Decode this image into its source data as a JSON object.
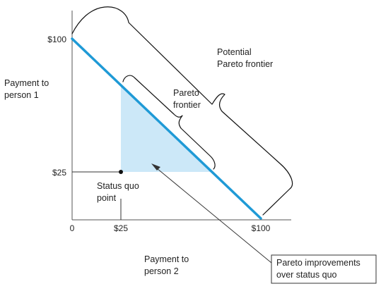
{
  "axes": {
    "y_label_line1": "Payment to",
    "y_label_line2": "person 1",
    "x_label_line1": "Payment to",
    "x_label_line2": "person 2",
    "y_ticks": [
      "$100",
      "$25"
    ],
    "x_ticks": [
      "0",
      "$25",
      "$100"
    ]
  },
  "annotations": {
    "potential_line1": "Potential",
    "potential_line2": "Pareto frontier",
    "frontier_line1": "Pareto",
    "frontier_line2": "frontier",
    "status_line1": "Status quo",
    "status_line2": "point",
    "improvements_line1": "Pareto improvements",
    "improvements_line2": "over status quo"
  },
  "colors": {
    "frontier_line": "#1f9ad6",
    "improvement_region": "#cce8f8"
  }
}
